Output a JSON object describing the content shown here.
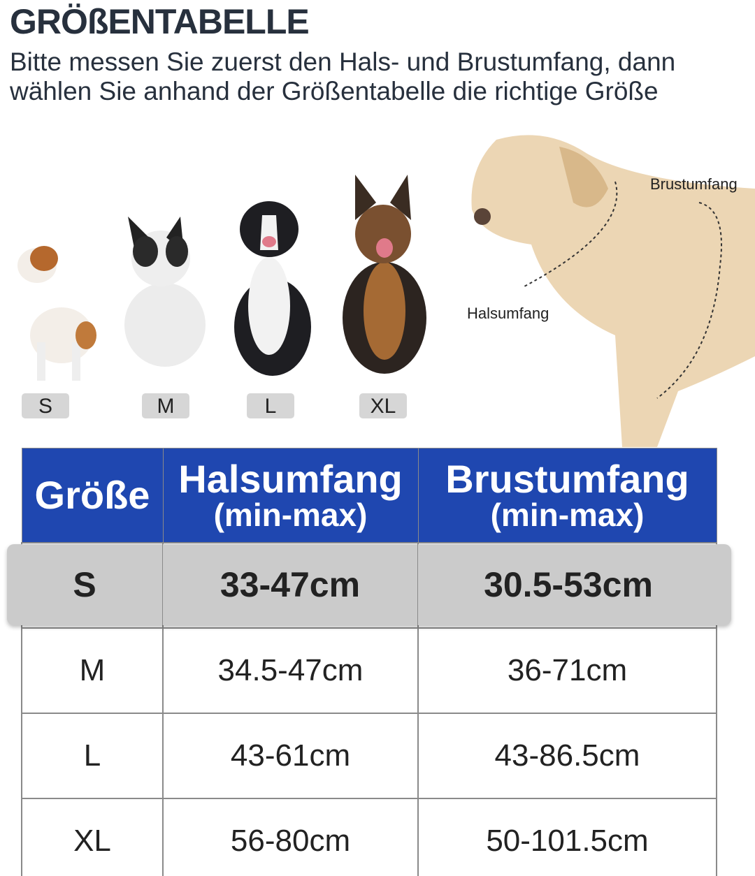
{
  "title": "GRÖßENTABELLE",
  "subtitle": "Bitte messen Sie zuerst den Hals- und Brustumfang, dann wählen Sie anhand der Größentabelle die richtige Größe",
  "dogs": [
    {
      "size": "S"
    },
    {
      "size": "M"
    },
    {
      "size": "L"
    },
    {
      "size": "XL"
    }
  ],
  "measure_labels": {
    "chest": "Brustumfang",
    "neck": "Halsumfang"
  },
  "table": {
    "header_color": "#1f47b0",
    "headers": [
      {
        "line1": "Größe",
        "line2": ""
      },
      {
        "line1": "Halsumfang",
        "line2": "(min-max)"
      },
      {
        "line1": "Brustumfang",
        "line2": "(min-max)"
      }
    ],
    "rows": [
      {
        "size": "S",
        "neck": "33-47cm",
        "chest": "30.5-53cm",
        "highlighted": true
      },
      {
        "size": "M",
        "neck": "34.5-47cm",
        "chest": "36-71cm"
      },
      {
        "size": "L",
        "neck": "43-61cm",
        "chest": "43-86.5cm"
      },
      {
        "size": "XL",
        "neck": "56-80cm",
        "chest": "50-101.5cm"
      }
    ]
  }
}
